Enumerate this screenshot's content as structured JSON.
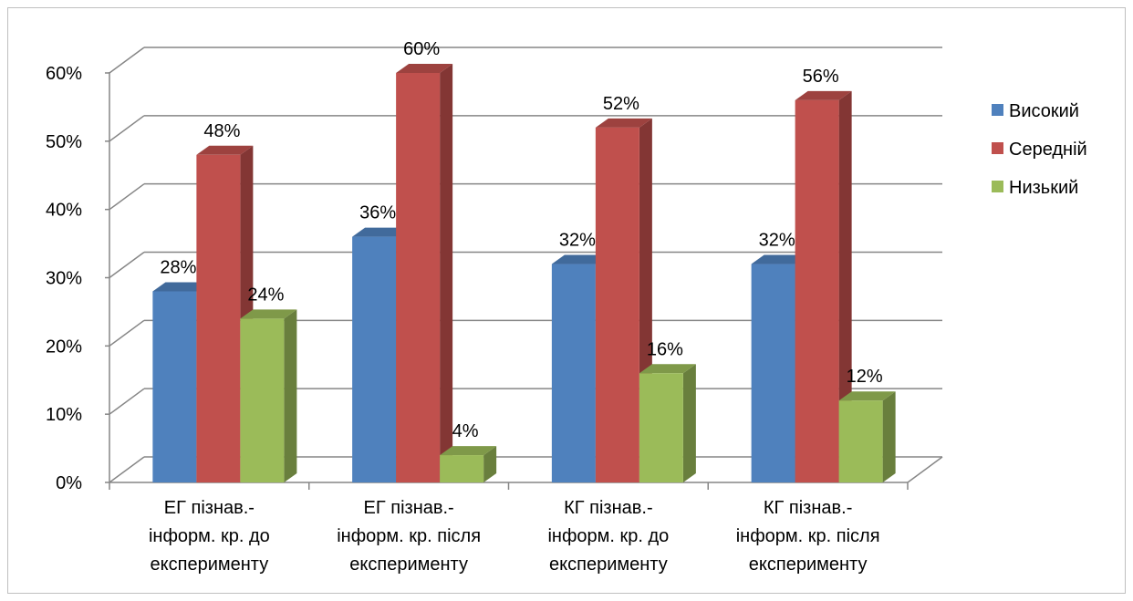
{
  "chart_data": {
    "type": "bar",
    "title": "",
    "xlabel": "",
    "ylabel": "",
    "ylim": [
      0,
      0.6
    ],
    "y_ticks": [
      "0%",
      "10%",
      "20%",
      "30%",
      "40%",
      "50%",
      "60%"
    ],
    "grid": true,
    "legend_position": "right",
    "categories": [
      [
        "ЕГ пізнав.-",
        "інформ. кр. до",
        "експерименту"
      ],
      [
        "ЕГ пізнав.-",
        "інформ. кр. після",
        "експерименту"
      ],
      [
        "КГ пізнав.-",
        "інформ. кр. до",
        "експерименту"
      ],
      [
        "КГ пізнав.-",
        "інформ. кр. після",
        "експерименту"
      ]
    ],
    "series": [
      {
        "name": "Високий",
        "color": "#4f81bd",
        "values": [
          0.28,
          0.36,
          0.32,
          0.32
        ],
        "labels": [
          "28%",
          "36%",
          "32%",
          "32%"
        ]
      },
      {
        "name": "Середній",
        "color": "#c0504d",
        "values": [
          0.48,
          0.6,
          0.52,
          0.56
        ],
        "labels": [
          "48%",
          "60%",
          "52%",
          "56%"
        ]
      },
      {
        "name": "Низький",
        "color": "#9bbb59",
        "values": [
          0.24,
          0.04,
          0.16,
          0.12
        ],
        "labels": [
          "24%",
          "4%",
          "16%",
          "12%"
        ]
      }
    ]
  }
}
